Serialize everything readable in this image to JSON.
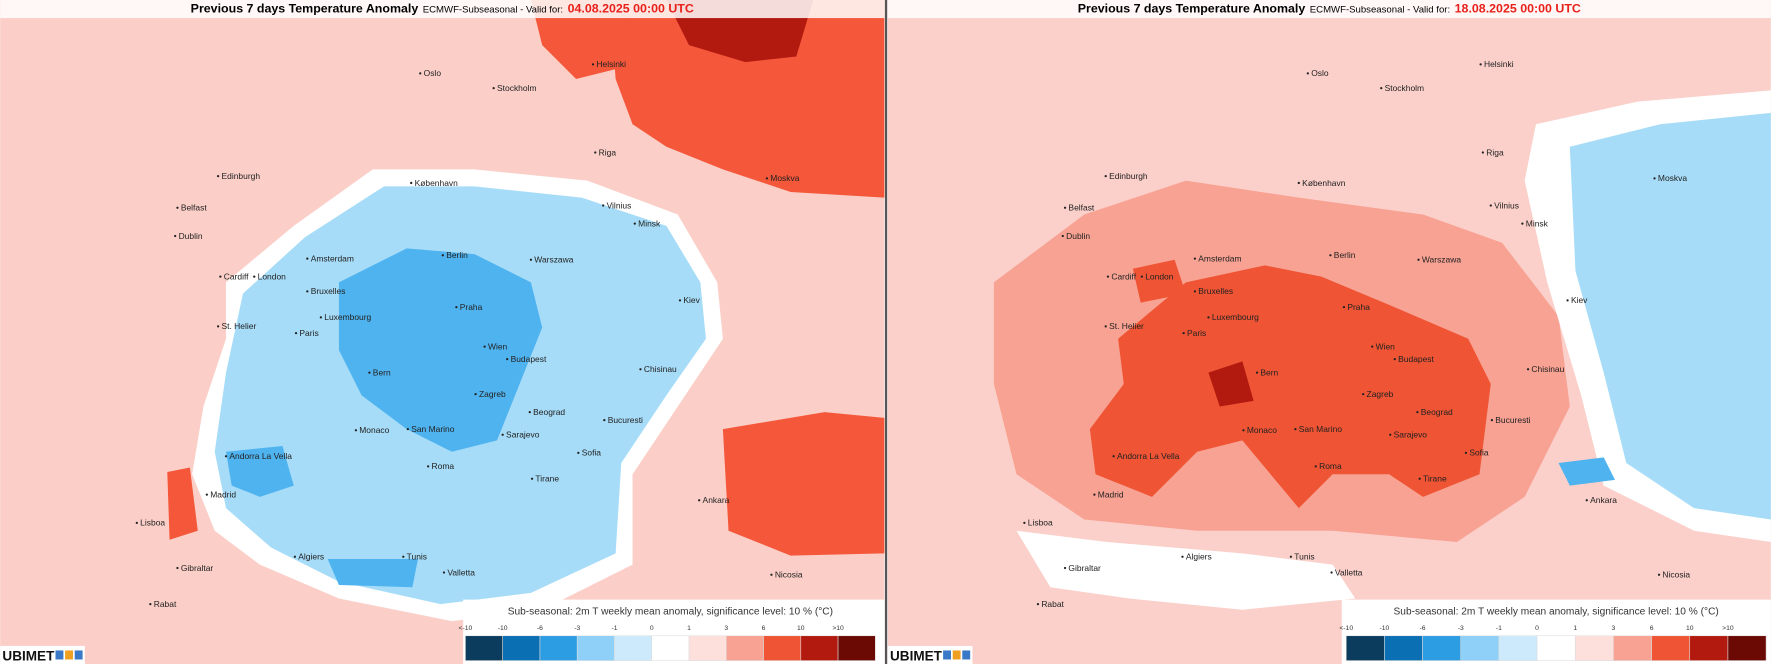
{
  "title": "Previous 7 days Temperature Anomaly",
  "source": "ECMWF-Subseasonal - Valid for:",
  "panels": [
    {
      "date": "04.08.2025 00:00 UTC"
    },
    {
      "date": "18.08.2025 00:00 UTC"
    }
  ],
  "legend": {
    "caption": "Sub-seasonal: 2m T weekly mean anomaly, significance level: 10 % (°C)",
    "labels": [
      "<-10",
      "-10",
      "-6",
      "-3",
      "-1",
      "0",
      "1",
      "3",
      "6",
      "10",
      ">10"
    ],
    "colors": [
      "#0b3c5d",
      "#0b6fb4",
      "#2d9de3",
      "#8fd0f8",
      "#cdeafc",
      "#ffffff",
      "#fde0dc",
      "#f8a293",
      "#ef5434",
      "#b21a10",
      "#6b0a05"
    ]
  },
  "logo": "UBIMET",
  "cities": [
    "Oslo",
    "Stockholm",
    "Helsinki",
    "Riga",
    "Moskva",
    "København",
    "Vilnius",
    "Minsk",
    "Edinburgh",
    "Belfast",
    "Dublin",
    "Amsterdam",
    "Berlin",
    "Warszawa",
    "London",
    "Cardiff",
    "Bruxelles",
    "Praha",
    "Kiev",
    "Luxembourg",
    "St. Helier",
    "Paris",
    "Wien",
    "Budapest",
    "Bern",
    "Chisinau",
    "Zagreb",
    "Beograd",
    "Monaco",
    "San Marino",
    "Sarajevo",
    "Bucuresti",
    "Andorra La Vella",
    "Sofia",
    "Roma",
    "Tirane",
    "Madrid",
    "Ankara",
    "Lisboa",
    "Algiers",
    "Tunis",
    "Valletta",
    "Nicosia",
    "Gibraltar",
    "Rabat"
  ]
}
